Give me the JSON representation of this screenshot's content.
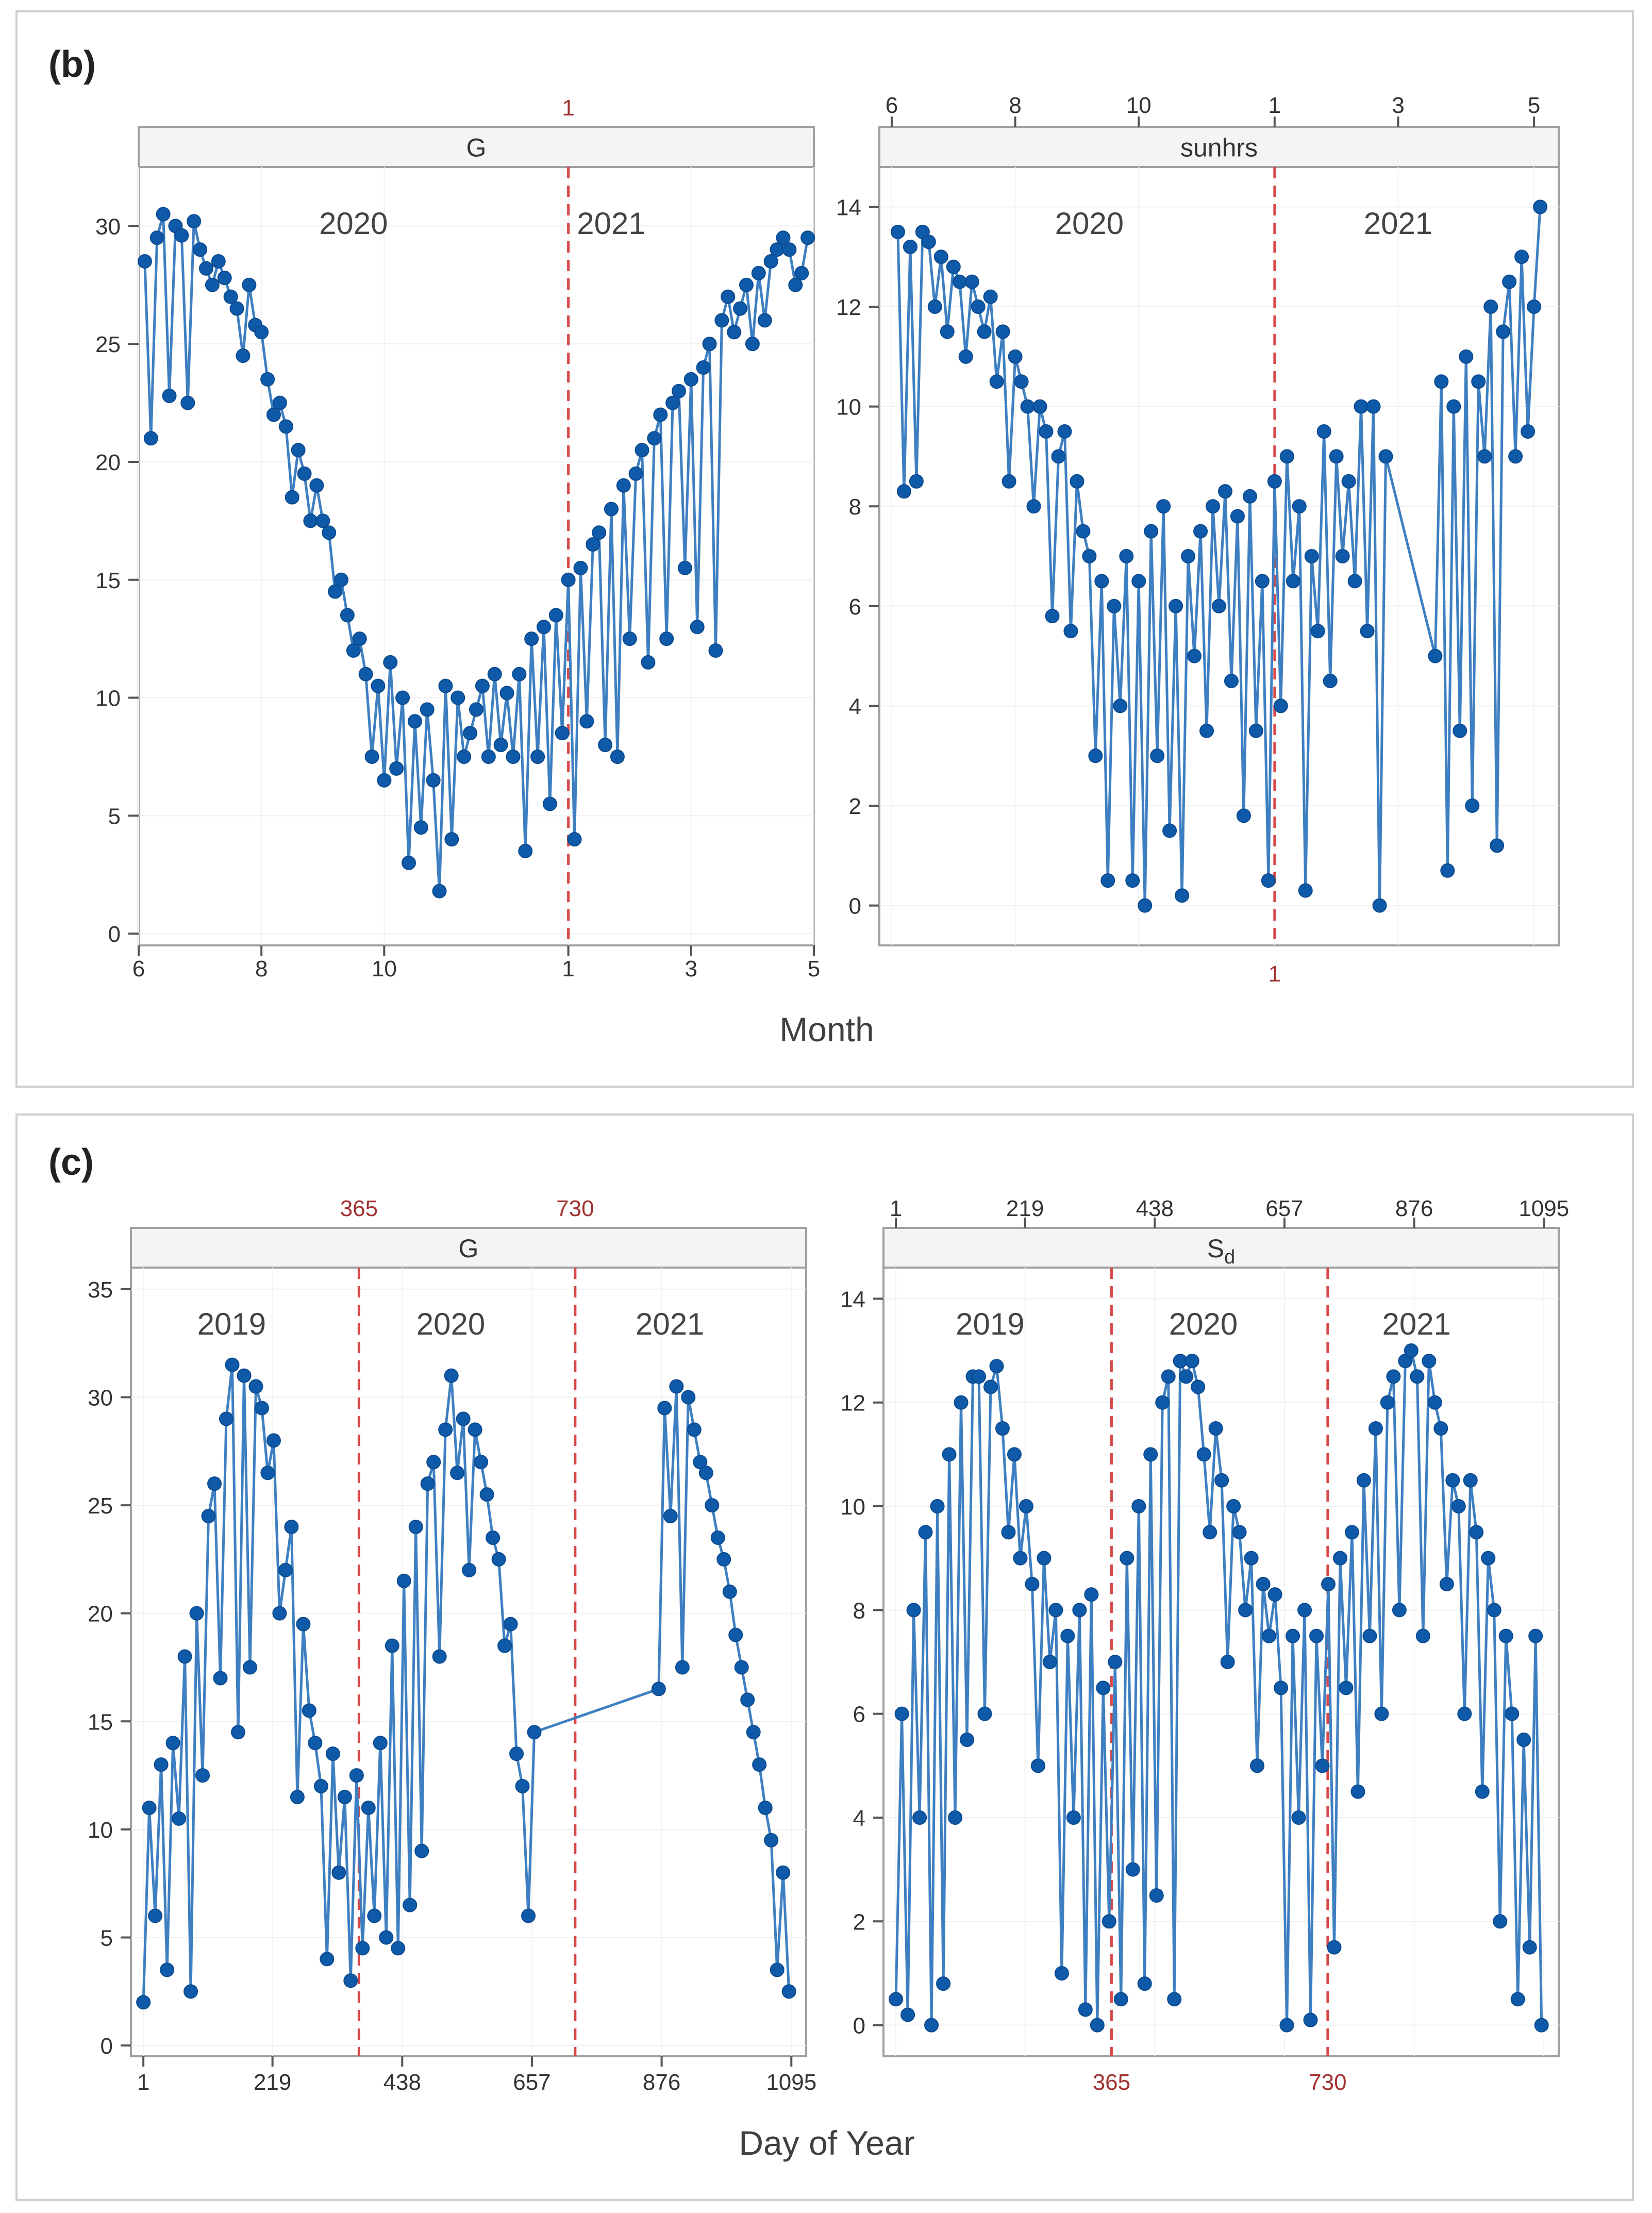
{
  "colors": {
    "series": "#0F5AA8",
    "line": "#3E7FC1",
    "ref": "#D84848",
    "refText": "#A23232",
    "strip": "#F4F4F4",
    "frame": "#A0A0A0",
    "text": "#404040"
  },
  "panel_b": {
    "label": "(b)",
    "xtitle": "Month",
    "charts": [
      {
        "strip": "G",
        "years": [
          "2020",
          "2021"
        ],
        "ref_label": "1",
        "ref_label_position": "top",
        "ticks": [
          "6",
          "8",
          "10",
          "1",
          "3",
          "5"
        ],
        "tick_position": "bottom",
        "yticks": [
          "0",
          "5",
          "10",
          "15",
          "20",
          "25",
          "30"
        ]
      },
      {
        "strip": "sunhrs",
        "years": [
          "2020",
          "2021"
        ],
        "ref_label": "1",
        "ref_label_position": "bottom",
        "ticks": [
          "6",
          "8",
          "10",
          "1",
          "3",
          "5"
        ],
        "tick_position": "top",
        "yticks": [
          "0",
          "2",
          "4",
          "6",
          "8",
          "10",
          "12",
          "14"
        ]
      }
    ]
  },
  "panel_c": {
    "label": "(c)",
    "xtitle": "Day of Year",
    "charts": [
      {
        "strip": "G",
        "years": [
          "2019",
          "2020",
          "2021"
        ],
        "ref_labels": [
          "365",
          "730"
        ],
        "ref_label_position": "top",
        "ticks": [
          "1",
          "219",
          "438",
          "657",
          "876",
          "1095"
        ],
        "tick_position": "bottom",
        "yticks": [
          "0",
          "5",
          "10",
          "15",
          "20",
          "25",
          "30",
          "35"
        ]
      },
      {
        "strip": "S",
        "strip_sub": "d",
        "years": [
          "2019",
          "2020",
          "2021"
        ],
        "ref_labels": [
          "365",
          "730"
        ],
        "ref_label_position": "bottom",
        "ticks": [
          "1",
          "219",
          "438",
          "657",
          "876",
          "1095"
        ],
        "tick_position": "top",
        "yticks": [
          "0",
          "2",
          "4",
          "6",
          "8",
          "10",
          "12",
          "14"
        ]
      }
    ]
  },
  "chart_data": [
    {
      "id": "b_G",
      "type": "line",
      "title": "G",
      "xlabel": "Month",
      "ylabel": "",
      "xlim": [
        0,
        11
      ],
      "ylim": [
        -0.5,
        32.5
      ],
      "ref_x": [
        7
      ],
      "year_x": [
        3.5,
        7.7
      ],
      "tick_x": [
        0,
        2,
        4,
        7,
        9,
        11
      ],
      "tick_labels": [
        "6",
        "8",
        "10",
        "1",
        "3",
        "5"
      ],
      "x": [
        0.1,
        0.2,
        0.3,
        0.4,
        0.5,
        0.6,
        0.7,
        0.8,
        0.9,
        1.0,
        1.1,
        1.2,
        1.3,
        1.4,
        1.5,
        1.6,
        1.7,
        1.8,
        1.9,
        2.0,
        2.1,
        2.2,
        2.3,
        2.4,
        2.5,
        2.6,
        2.7,
        2.8,
        2.9,
        3.0,
        3.1,
        3.2,
        3.3,
        3.4,
        3.5,
        3.6,
        3.7,
        3.8,
        3.9,
        4.0,
        4.1,
        4.2,
        4.3,
        4.4,
        4.5,
        4.6,
        4.7,
        4.8,
        4.9,
        5.0,
        5.1,
        5.2,
        5.3,
        5.4,
        5.5,
        5.6,
        5.7,
        5.8,
        5.9,
        6.0,
        6.1,
        6.2,
        6.3,
        6.4,
        6.5,
        6.6,
        6.7,
        6.8,
        6.9,
        7.0,
        7.1,
        7.2,
        7.3,
        7.4,
        7.5,
        7.6,
        7.7,
        7.8,
        7.9,
        8.0,
        8.1,
        8.2,
        8.3,
        8.4,
        8.5,
        8.6,
        8.7,
        8.8,
        8.9,
        9.0,
        9.1,
        9.2,
        9.3,
        9.4,
        9.5,
        9.6,
        9.7,
        9.8,
        9.9,
        10.0,
        10.1,
        10.2,
        10.3,
        10.4,
        10.5,
        10.6,
        10.7,
        10.8,
        10.9
      ],
      "y": [
        28.5,
        21.0,
        29.5,
        30.5,
        22.8,
        30.0,
        29.6,
        22.5,
        30.2,
        29.0,
        28.2,
        27.5,
        28.5,
        27.8,
        27.0,
        26.5,
        24.5,
        27.5,
        25.8,
        25.5,
        23.5,
        22.0,
        22.5,
        21.5,
        18.5,
        20.5,
        19.5,
        17.5,
        19.0,
        17.5,
        17.0,
        14.5,
        15.0,
        13.5,
        12.0,
        12.5,
        11.0,
        7.5,
        10.5,
        6.5,
        11.5,
        7.0,
        10.0,
        3.0,
        9.0,
        4.5,
        9.5,
        6.5,
        1.8,
        10.5,
        4.0,
        10.0,
        7.5,
        8.5,
        9.5,
        10.5,
        7.5,
        11.0,
        8.0,
        10.2,
        7.5,
        11.0,
        3.5,
        12.5,
        7.5,
        13.0,
        5.5,
        13.5,
        8.5,
        15.0,
        4.0,
        15.5,
        9.0,
        16.5,
        17.0,
        8.0,
        18.0,
        7.5,
        19.0,
        12.5,
        19.5,
        20.5,
        11.5,
        21.0,
        22.0,
        12.5,
        22.5,
        23.0,
        15.5,
        23.5,
        13.0,
        24.0,
        25.0,
        12.0,
        26.0,
        27.0,
        25.5,
        26.5,
        27.5,
        25.0,
        28.0,
        26.0,
        28.5,
        29.0,
        29.5,
        29.0,
        27.5,
        28.0,
        29.5
      ]
    },
    {
      "id": "b_sunhrs",
      "type": "line",
      "title": "sunhrs",
      "xlabel": "Month",
      "ylabel": "",
      "xlim": [
        0,
        11
      ],
      "ylim": [
        -0.8,
        14.8
      ],
      "ref_x": [
        6.4
      ],
      "year_x": [
        3.4,
        8.4
      ],
      "tick_x": [
        0.2,
        2.2,
        4.2,
        6.4,
        8.4,
        10.6
      ],
      "tick_labels": [
        "6",
        "8",
        "10",
        "1",
        "3",
        "5"
      ],
      "x": [
        0.3,
        0.4,
        0.5,
        0.6,
        0.7,
        0.8,
        0.9,
        1.0,
        1.1,
        1.2,
        1.3,
        1.4,
        1.5,
        1.6,
        1.7,
        1.8,
        1.9,
        2.0,
        2.1,
        2.2,
        2.3,
        2.4,
        2.5,
        2.6,
        2.7,
        2.8,
        2.9,
        3.0,
        3.1,
        3.2,
        3.3,
        3.4,
        3.5,
        3.6,
        3.7,
        3.8,
        3.9,
        4.0,
        4.1,
        4.2,
        4.3,
        4.4,
        4.5,
        4.6,
        4.7,
        4.8,
        4.9,
        5.0,
        5.1,
        5.2,
        5.3,
        5.4,
        5.5,
        5.6,
        5.7,
        5.8,
        5.9,
        6.0,
        6.1,
        6.2,
        6.3,
        6.4,
        6.5,
        6.6,
        6.7,
        6.8,
        6.9,
        7.0,
        7.1,
        7.2,
        7.3,
        7.4,
        7.5,
        7.6,
        7.7,
        7.8,
        7.9,
        8.0,
        8.1,
        8.2,
        9.0,
        9.1,
        9.2,
        9.3,
        9.4,
        9.5,
        9.6,
        9.7,
        9.8,
        9.9,
        10.0,
        10.1,
        10.2,
        10.3,
        10.4,
        10.5,
        10.6,
        10.7
      ],
      "y": [
        13.5,
        8.3,
        13.2,
        8.5,
        13.5,
        13.3,
        12.0,
        13.0,
        11.5,
        12.8,
        12.5,
        11.0,
        12.5,
        12.0,
        11.5,
        12.2,
        10.5,
        11.5,
        8.5,
        11.0,
        10.5,
        10.0,
        8.0,
        10.0,
        9.5,
        5.8,
        9.0,
        9.5,
        5.5,
        8.5,
        7.5,
        7.0,
        3.0,
        6.5,
        0.5,
        6.0,
        4.0,
        7.0,
        0.5,
        6.5,
        0.0,
        7.5,
        3.0,
        8.0,
        1.5,
        6.0,
        0.2,
        7.0,
        5.0,
        7.5,
        3.5,
        8.0,
        6.0,
        8.3,
        4.5,
        7.8,
        1.8,
        8.2,
        3.5,
        6.5,
        0.5,
        8.5,
        4.0,
        9.0,
        6.5,
        8.0,
        0.3,
        7.0,
        5.5,
        9.5,
        4.5,
        9.0,
        7.0,
        8.5,
        6.5,
        10.0,
        5.5,
        10.0,
        0.0,
        9.0,
        5.0,
        10.5,
        0.7,
        10.0,
        3.5,
        11.0,
        2.0,
        10.5,
        9.0,
        12.0,
        1.2,
        11.5,
        12.5,
        9.0,
        13.0,
        9.5,
        12.0,
        14.0
      ]
    },
    {
      "id": "c_G",
      "type": "line",
      "title": "G",
      "xlabel": "Day of Year",
      "ylabel": "",
      "xlim": [
        -20,
        1120
      ],
      "ylim": [
        -0.5,
        36
      ],
      "ref_x": [
        365,
        730
      ],
      "year_x": [
        150,
        520,
        890
      ],
      "tick_x": [
        1,
        219,
        438,
        657,
        876,
        1095
      ],
      "tick_labels": [
        "1",
        "219",
        "438",
        "657",
        "876",
        "1095"
      ],
      "x": [
        1,
        11,
        21,
        31,
        41,
        51,
        61,
        71,
        81,
        91,
        101,
        111,
        121,
        131,
        141,
        151,
        161,
        171,
        181,
        191,
        201,
        211,
        221,
        231,
        241,
        251,
        261,
        271,
        281,
        291,
        301,
        311,
        321,
        331,
        341,
        351,
        361,
        371,
        381,
        391,
        401,
        411,
        421,
        431,
        441,
        451,
        461,
        471,
        481,
        491,
        501,
        511,
        521,
        531,
        541,
        551,
        561,
        571,
        581,
        591,
        601,
        611,
        621,
        631,
        641,
        651,
        661,
        871,
        881,
        891,
        901,
        911,
        921,
        931,
        941,
        951,
        961,
        971,
        981,
        991,
        1001,
        1011,
        1021,
        1031,
        1041,
        1051,
        1061,
        1071,
        1081,
        1091
      ],
      "y": [
        2.0,
        11.0,
        6.0,
        13.0,
        3.5,
        14.0,
        10.5,
        18.0,
        2.5,
        20.0,
        12.5,
        24.5,
        26.0,
        17.0,
        29.0,
        31.5,
        14.5,
        31.0,
        17.5,
        30.5,
        29.5,
        26.5,
        28.0,
        20.0,
        22.0,
        24.0,
        11.5,
        19.5,
        15.5,
        14.0,
        12.0,
        4.0,
        13.5,
        8.0,
        11.5,
        3.0,
        12.5,
        4.5,
        11.0,
        6.0,
        14.0,
        5.0,
        18.5,
        4.5,
        21.5,
        6.5,
        24.0,
        9.0,
        26.0,
        27.0,
        18.0,
        28.5,
        31.0,
        26.5,
        29.0,
        22.0,
        28.5,
        27.0,
        25.5,
        23.5,
        22.5,
        18.5,
        19.5,
        13.5,
        12.0,
        6.0,
        14.5,
        16.5,
        29.5,
        24.5,
        30.5,
        17.5,
        30.0,
        28.5,
        27.0,
        26.5,
        25.0,
        23.5,
        22.5,
        21.0,
        19.0,
        17.5,
        16.0,
        14.5,
        13.0,
        11.0,
        9.5,
        3.5,
        8.0,
        2.5
      ]
    },
    {
      "id": "c_Sd",
      "type": "line",
      "title": "Sd",
      "xlabel": "Day of Year",
      "ylabel": "",
      "xlim": [
        -20,
        1120
      ],
      "ylim": [
        -0.6,
        14.6
      ],
      "ref_x": [
        365,
        730
      ],
      "year_x": [
        160,
        520,
        880
      ],
      "tick_x": [
        1,
        219,
        438,
        657,
        876,
        1095
      ],
      "tick_labels": [
        "1",
        "219",
        "438",
        "657",
        "876",
        "1095"
      ],
      "x": [
        1,
        11,
        21,
        31,
        41,
        51,
        61,
        71,
        81,
        91,
        101,
        111,
        121,
        131,
        141,
        151,
        161,
        171,
        181,
        191,
        201,
        211,
        221,
        231,
        241,
        251,
        261,
        271,
        281,
        291,
        301,
        311,
        321,
        331,
        341,
        351,
        361,
        371,
        381,
        391,
        401,
        411,
        421,
        431,
        441,
        451,
        461,
        471,
        481,
        491,
        501,
        511,
        521,
        531,
        541,
        551,
        561,
        571,
        581,
        591,
        601,
        611,
        621,
        631,
        641,
        651,
        661,
        671,
        681,
        691,
        701,
        711,
        721,
        731,
        741,
        751,
        761,
        771,
        781,
        791,
        801,
        811,
        821,
        831,
        841,
        851,
        861,
        871,
        881,
        891,
        901,
        911,
        921,
        931,
        941,
        951,
        961,
        971,
        981,
        991,
        1001,
        1011,
        1021,
        1031,
        1041,
        1051,
        1061,
        1071,
        1081,
        1091
      ],
      "y": [
        0.5,
        6.0,
        0.2,
        8.0,
        4.0,
        9.5,
        0.0,
        10.0,
        0.8,
        11.0,
        4.0,
        12.0,
        5.5,
        12.5,
        12.5,
        6.0,
        12.3,
        12.7,
        11.5,
        9.5,
        11.0,
        9.0,
        10.0,
        8.5,
        5.0,
        9.0,
        7.0,
        8.0,
        1.0,
        7.5,
        4.0,
        8.0,
        0.3,
        8.3,
        0.0,
        6.5,
        2.0,
        7.0,
        0.5,
        9.0,
        3.0,
        10.0,
        0.8,
        11.0,
        2.5,
        12.0,
        12.5,
        0.5,
        12.8,
        12.5,
        12.8,
        12.3,
        11.0,
        9.5,
        11.5,
        10.5,
        7.0,
        10.0,
        9.5,
        8.0,
        9.0,
        5.0,
        8.5,
        7.5,
        8.3,
        6.5,
        0.0,
        7.5,
        4.0,
        8.0,
        0.1,
        7.5,
        5.0,
        8.5,
        1.5,
        9.0,
        6.5,
        9.5,
        4.5,
        10.5,
        7.5,
        11.5,
        6.0,
        12.0,
        12.5,
        8.0,
        12.8,
        13.0,
        12.5,
        7.5,
        12.8,
        12.0,
        11.5,
        8.5,
        10.5,
        10.0,
        6.0,
        10.5,
        9.5,
        4.5,
        9.0,
        8.0,
        2.0,
        7.5,
        6.0,
        0.5,
        5.5,
        1.5,
        7.5,
        0.0
      ]
    }
  ]
}
